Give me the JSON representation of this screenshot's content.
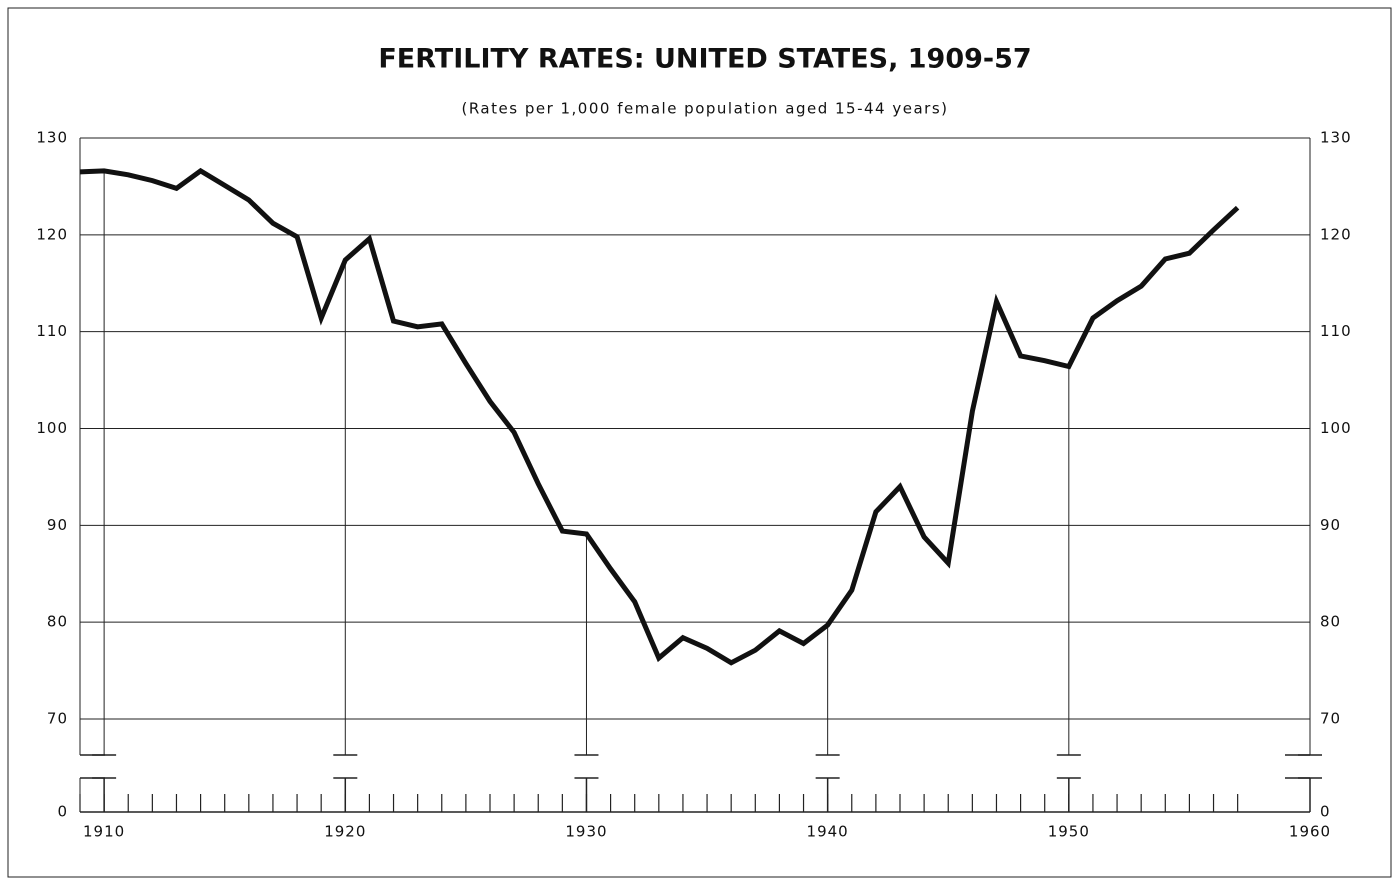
{
  "chart_data": {
    "type": "line",
    "title": "FERTILITY RATES: UNITED STATES, 1909-57",
    "subtitle": "(Rates per 1,000 female population aged 15-44 years)",
    "x": [
      1909,
      1910,
      1911,
      1912,
      1913,
      1914,
      1915,
      1916,
      1917,
      1918,
      1919,
      1920,
      1921,
      1922,
      1923,
      1924,
      1925,
      1926,
      1927,
      1928,
      1929,
      1930,
      1931,
      1932,
      1933,
      1934,
      1935,
      1936,
      1937,
      1938,
      1939,
      1940,
      1941,
      1942,
      1943,
      1944,
      1945,
      1946,
      1947,
      1948,
      1949,
      1950,
      1951,
      1952,
      1953,
      1954,
      1955,
      1956,
      1957
    ],
    "series": [
      {
        "color": "#111111",
        "values": [
          126.5,
          126.6,
          126.2,
          125.6,
          124.8,
          126.6,
          125.1,
          123.6,
          121.2,
          119.8,
          111.4,
          117.4,
          119.6,
          111.1,
          110.5,
          110.8,
          106.7,
          102.8,
          99.6,
          94.3,
          89.4,
          89.1,
          85.5,
          82.1,
          76.3,
          78.4,
          77.3,
          75.8,
          77.1,
          79.1,
          77.8,
          79.7,
          83.3,
          91.4,
          94.0,
          88.8,
          86.1,
          101.8,
          113.1,
          107.5,
          107.0,
          106.4,
          111.4,
          113.2,
          114.7,
          117.5,
          118.1,
          120.5,
          122.8
        ]
      }
    ],
    "xlim": [
      1909,
      1960
    ],
    "xticks": [
      1910,
      1920,
      1930,
      1940,
      1950,
      1960
    ],
    "ylim": [
      0,
      130
    ],
    "y_break": [
      0,
      70
    ],
    "yticks": [
      0,
      70,
      80,
      90,
      100,
      110,
      120,
      130
    ],
    "grid": true
  }
}
